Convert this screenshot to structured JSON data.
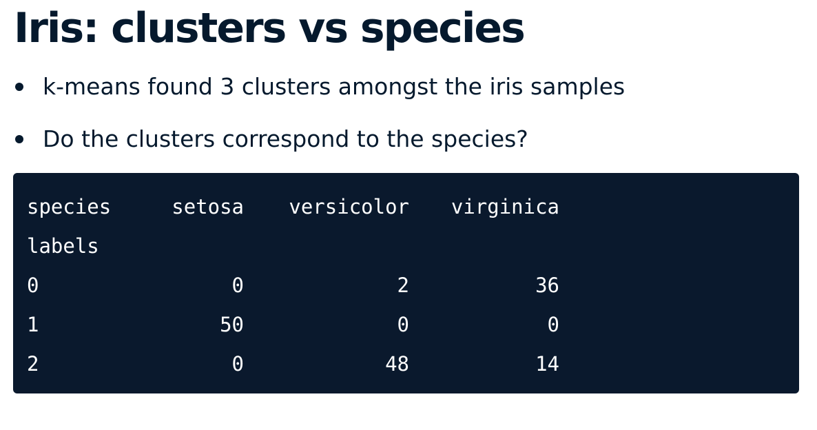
{
  "title": "Iris: clusters vs species",
  "bullets": [
    "k-means found 3 clusters amongst the iris samples",
    "Do the clusters correspond to the species?"
  ],
  "crosstab": {
    "header": [
      "species",
      "setosa",
      "versicolor",
      "virginica"
    ],
    "index_name": "labels",
    "rows": [
      [
        "0",
        "0",
        "2",
        "36"
      ],
      [
        "1",
        "50",
        "0",
        "0"
      ],
      [
        "2",
        "0",
        "48",
        "14"
      ]
    ]
  },
  "colors": {
    "text": "#05192d",
    "code_background": "#0a192d",
    "code_text": "#ffffff"
  }
}
